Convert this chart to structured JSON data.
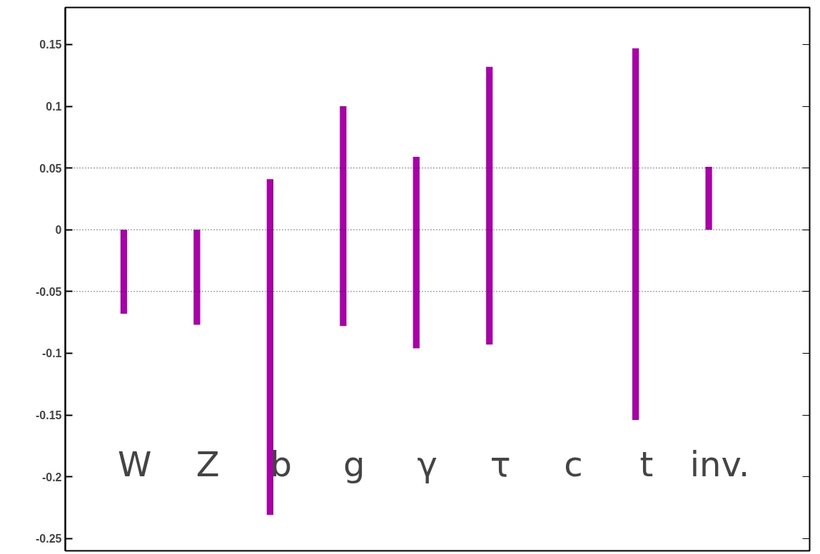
{
  "chart_data": {
    "type": "bar",
    "categories": [
      "W",
      "Z",
      "b",
      "g",
      "γ",
      "τ",
      "c",
      "t",
      "inv."
    ],
    "base": [
      -0.068,
      -0.077,
      -0.231,
      -0.078,
      -0.096,
      -0.093,
      null,
      -0.154,
      0
    ],
    "values": [
      0.068,
      0.077,
      0.272,
      0.178,
      0.155,
      0.225,
      null,
      0.301,
      0.051
    ],
    "color": "#aa00aa",
    "ylim": [
      -0.26,
      0.18
    ],
    "yticks": [
      -0.25,
      -0.2,
      -0.15,
      -0.1,
      -0.05,
      0,
      0.05,
      0.1,
      0.15
    ],
    "ref_lines": [
      {
        "axis": "y",
        "value": 0.05,
        "line_style": "dotted"
      },
      {
        "axis": "y",
        "value": 0,
        "line_style": "dotted"
      },
      {
        "axis": "y",
        "value": -0.05,
        "line_style": "dotted"
      }
    ],
    "grid": false
  }
}
